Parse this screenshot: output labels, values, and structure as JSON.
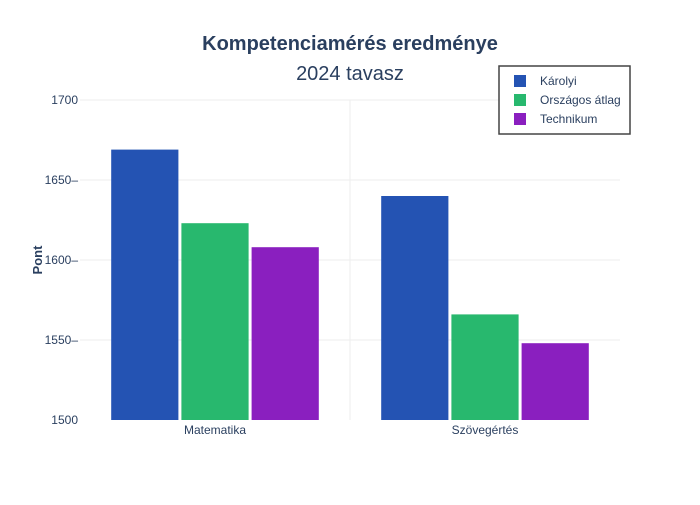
{
  "chart_data": {
    "type": "bar",
    "title": "Kompetenciamérés eredménye",
    "subtitle": "2024 tavasz",
    "xlabel": "",
    "ylabel": "Pont",
    "categories": [
      "Matematika",
      "Szövegértés"
    ],
    "series": [
      {
        "name": "Károlyi",
        "values": [
          1669,
          1640
        ],
        "color": "#2453b3"
      },
      {
        "name": "Országos átlag",
        "values": [
          1623,
          1566
        ],
        "color": "#28b86e"
      },
      {
        "name": "Technikum",
        "values": [
          1608,
          1548
        ],
        "color": "#8a1fbf"
      }
    ],
    "ylim": [
      1500,
      1700
    ],
    "yticks": [
      1500,
      1550,
      1600,
      1650,
      1700
    ],
    "ytick_labels": [
      "1500",
      "1550",
      "1600",
      "1650",
      "1700"
    ],
    "grid": true,
    "legend_position": "top-right"
  },
  "colors": {
    "title": "#2a3f5f",
    "axis_text": "#2a3f5f",
    "grid": "#eeeeee",
    "legend_border": "#444444"
  }
}
